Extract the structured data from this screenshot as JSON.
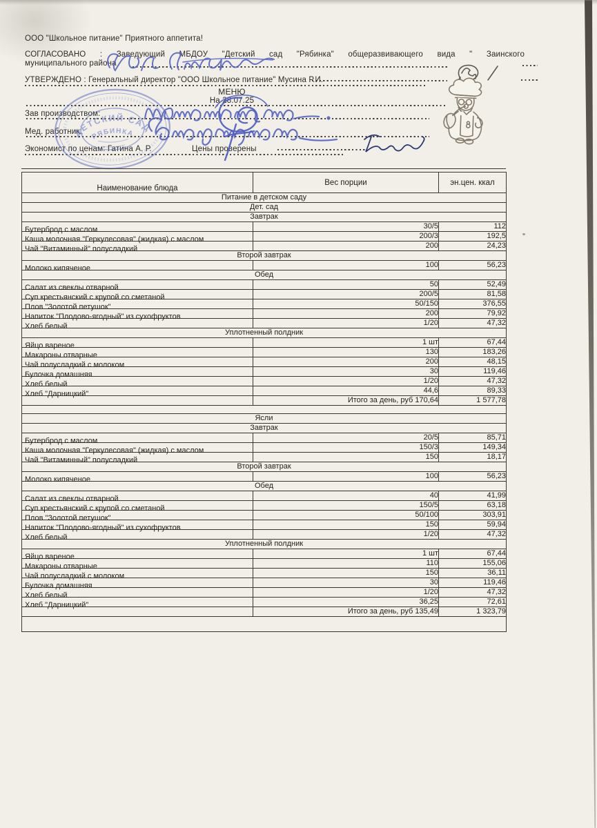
{
  "document": {
    "tagline": "ООО \"Школьное питание\" Приятного аппетита!",
    "agreed_line1": "СОГЛАСОВАНО : Заведующий МБДОУ \"Детский сад \"Рябинка\" общеразвивающего вида \" Заинского",
    "agreed_line2": "муниципального района",
    "approved": "УТВЕРЖДЕНО : Генеральный директор \"ООО Школьное питание\" Мусина Р.И.",
    "title": "МЕНЮ",
    "date_line": "На 28.07.25",
    "labels": {
      "production_manager": "Зав производством:",
      "medical_worker": "Мед. работник:",
      "economist": "Экономист по ценам: Гатина А. Р.",
      "prices_checked": "Цены проверены"
    },
    "stamp": {
      "line1": "ДЕТСКИЙ САД",
      "line2": "РЯБИНКА"
    }
  },
  "colors": {
    "paper": "#f1efe8",
    "ink": "#2c2a26",
    "table_line": "#39362f",
    "stamp_blue": "#5b6cc5",
    "signature_blue": "#4d5cbf",
    "economist_ink": "#2c3672"
  },
  "table": {
    "columns": [
      "Наименование блюда",
      "Вес порции",
      "эн.цен. ккал"
    ],
    "rows": [
      {
        "type": "section",
        "label": "Питание в детском саду"
      },
      {
        "type": "section",
        "label": "Дет. сад"
      },
      {
        "type": "section",
        "label": "Завтрак"
      },
      {
        "type": "item",
        "name": "Бутерброд с маслом",
        "weight": "30/5",
        "kcal": "112"
      },
      {
        "type": "item",
        "name": "Каша молочная \"Геркулесовая\" (жидкая) с маслом",
        "weight": "200/3",
        "kcal": "192,5"
      },
      {
        "type": "item",
        "name": "Чай \"Витаминный\" полусладкий",
        "weight": "200",
        "kcal": "24,23"
      },
      {
        "type": "section",
        "label": "Второй завтрак"
      },
      {
        "type": "item",
        "name": "Молоко кипяченое",
        "weight": "100",
        "kcal": "56,23"
      },
      {
        "type": "section",
        "label": "Обед"
      },
      {
        "type": "item",
        "name": "Салат из свеклы отварной",
        "weight": "50",
        "kcal": "52,49"
      },
      {
        "type": "item",
        "name": "Суп крестьянский с крупой со сметаной",
        "weight": "200/5",
        "kcal": "81,58"
      },
      {
        "type": "item",
        "name": "Плов \"Золотой петушок\"",
        "weight": "50/150",
        "kcal": "376,55"
      },
      {
        "type": "item",
        "name": "Напиток \"Плодово-ягодный\" из сухофруктов",
        "weight": "200",
        "kcal": "79,92"
      },
      {
        "type": "item",
        "name": "Хлеб белый",
        "weight": "1/20",
        "kcal": "47,32"
      },
      {
        "type": "section",
        "label": "Уплотненный полдник"
      },
      {
        "type": "item",
        "name": "Яйцо вареное",
        "weight": "1 шт",
        "kcal": "67,44"
      },
      {
        "type": "item",
        "name": "Макароны отварные",
        "weight": "130",
        "kcal": "183,26"
      },
      {
        "type": "item",
        "name": "Чай полусладкий с молоком",
        "weight": "200",
        "kcal": "48,15"
      },
      {
        "type": "item",
        "name": "Булочка домашняя",
        "weight": "30",
        "kcal": "119,46"
      },
      {
        "type": "item",
        "name": "Хлеб белый",
        "weight": "1/20",
        "kcal": "47,32"
      },
      {
        "type": "item",
        "name": "Хлеб \"Дарницкий\"",
        "weight": "44,6",
        "kcal": "89,33"
      },
      {
        "type": "total",
        "label": "Итого за день, руб 170,64",
        "kcal": "1 577,78"
      },
      {
        "type": "spacer"
      },
      {
        "type": "section",
        "label": "Ясли"
      },
      {
        "type": "section",
        "label": "Завтрак"
      },
      {
        "type": "item",
        "name": "Бутерброд с маслом",
        "weight": "20/5",
        "kcal": "85,71"
      },
      {
        "type": "item",
        "name": "Каша молочная \"Геркулесовая\" (жидкая) с маслом",
        "weight": "150/3",
        "kcal": "149,34"
      },
      {
        "type": "item",
        "name": "Чай \"Витаминный\" полусладкий",
        "weight": "150",
        "kcal": "18,17"
      },
      {
        "type": "section",
        "label": "Второй завтрак"
      },
      {
        "type": "item",
        "name": "Молоко кипяченое",
        "weight": "100",
        "kcal": "56,23"
      },
      {
        "type": "section",
        "label": "Обед"
      },
      {
        "type": "item",
        "name": "Салат из свеклы отварной",
        "weight": "40",
        "kcal": "41,99"
      },
      {
        "type": "item",
        "name": "Суп крестьянский с крупой со сметаной",
        "weight": "150/5",
        "kcal": "63,18"
      },
      {
        "type": "item",
        "name": "Плов \"Золотой петушок\"",
        "weight": "50/100",
        "kcal": "303,91"
      },
      {
        "type": "item",
        "name": "Напиток \"Плодово-ягодный\" из сухофруктов",
        "weight": "150",
        "kcal": "59,94"
      },
      {
        "type": "item",
        "name": "Хлеб белый",
        "weight": "1/20",
        "kcal": "47,32"
      },
      {
        "type": "section",
        "label": "Уплотненный полдник"
      },
      {
        "type": "item",
        "name": "Яйцо вареное",
        "weight": "1 шт",
        "kcal": "67,44"
      },
      {
        "type": "item",
        "name": "Макароны отварные",
        "weight": "110",
        "kcal": "155,06"
      },
      {
        "type": "item",
        "name": "Чай полусладкий с молоком",
        "weight": "150",
        "kcal": "36,11"
      },
      {
        "type": "item",
        "name": "Булочка домашняя",
        "weight": "30",
        "kcal": "119,46"
      },
      {
        "type": "item",
        "name": "Хлеб белый",
        "weight": "1/20",
        "kcal": "47,32"
      },
      {
        "type": "item",
        "name": "Хлеб \"Дарницкий\"",
        "weight": "36,25",
        "kcal": "72,61"
      },
      {
        "type": "total",
        "label": "Итого за день, руб 135,49",
        "kcal": "1 323,79"
      },
      {
        "type": "spacer",
        "tall": true
      }
    ]
  }
}
